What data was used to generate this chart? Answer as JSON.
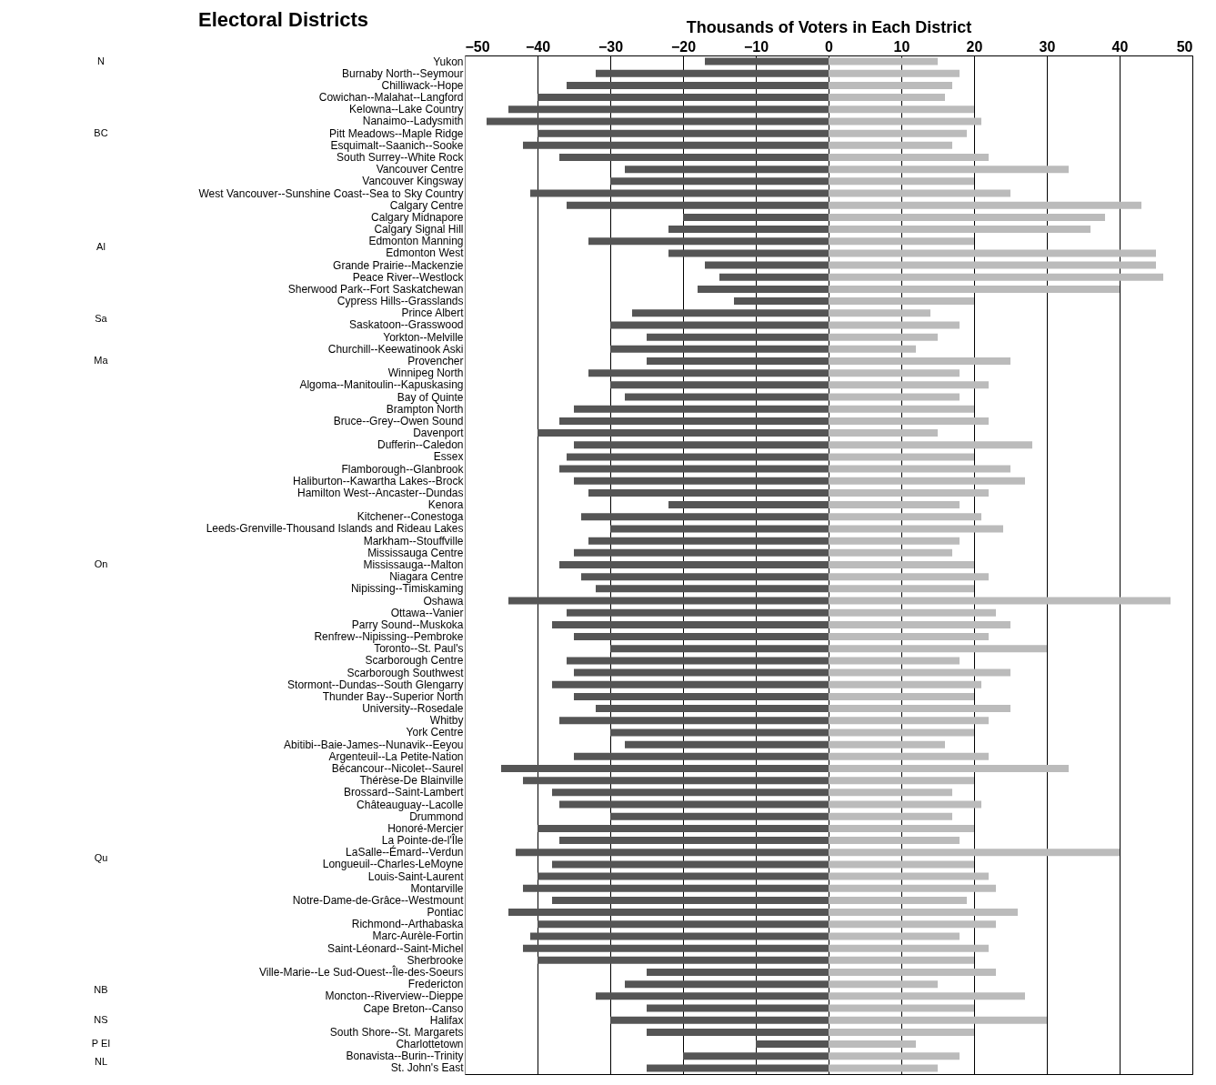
{
  "chart_data": {
    "type": "bar",
    "orientation": "horizontal",
    "stacked": true,
    "title": "Thousands of Voters in Each District",
    "ylabel": "Electoral Districts",
    "categories": [
      "Yukon",
      "Burnaby North--Seymour",
      "Chilliwack--Hope",
      "Cowichan--Malahat--Langford",
      "Kelowna--Lake Country",
      "Nanaimo--Ladysmith",
      "Pitt Meadows--Maple Ridge",
      "Esquimalt--Saanich--Sooke",
      "South Surrey--White Rock",
      "Vancouver Centre",
      "Vancouver Kingsway",
      "West Vancouver--Sunshine Coast--Sea to Sky Country",
      "Calgary Centre",
      "Calgary Midnapore",
      "Calgary Signal Hill",
      "Edmonton Manning",
      "Edmonton West",
      "Grande Prairie--Mackenzie",
      "Peace River--Westlock",
      "Sherwood Park--Fort Saskatchewan",
      "Cypress Hills--Grasslands",
      "Prince Albert",
      "Saskatoon--Grasswood",
      "Yorkton--Melville",
      "Churchill--Keewatinook Aski",
      "Provencher",
      "Winnipeg North",
      "Algoma--Manitoulin--Kapuskasing",
      "Bay of Quinte",
      "Brampton North",
      "Bruce--Grey--Owen Sound",
      "Davenport",
      "Dufferin--Caledon",
      "Essex",
      "Flamborough--Glanbrook",
      "Haliburton--Kawartha Lakes--Brock",
      "Hamilton West--Ancaster--Dundas",
      "Kenora",
      "Kitchener--Conestoga",
      "Leeds-Grenville-Thousand Islands and Rideau Lakes",
      "Markham--Stouffville",
      "Mississauga Centre",
      "Mississauga--Malton",
      "Niagara Centre",
      "Nipissing--Timiskaming",
      "Oshawa",
      "Ottawa--Vanier",
      "Parry Sound--Muskoka",
      "Renfrew--Nipissing--Pembroke",
      "Toronto--St. Paul's",
      "Scarborough Centre",
      "Scarborough Southwest",
      "Stormont--Dundas--South Glengarry",
      "Thunder Bay--Superior North",
      "University--Rosedale",
      "Whitby",
      "York Centre",
      "Abitibi--Baie-James--Nunavik--Eeyou",
      "Argenteuil--La Petite-Nation",
      "Bécancour--Nicolet--Saurel",
      "Thérèse-De Blainville",
      "Brossard--Saint-Lambert",
      "Châteauguay--Lacolle",
      "Drummond",
      "Honoré-Mercier",
      "La Pointe-de-l'Île",
      "LaSalle--Émard--Verdun",
      "Longueuil--Charles-LeMoyne",
      "Louis-Saint-Laurent",
      "Montarville",
      "Notre-Dame-de-Grâce--Westmount",
      "Pontiac",
      "Richmond--Arthabaska",
      "Marc-Aurèle-Fortin",
      "Saint-Léonard--Saint-Michel",
      "Sherbrooke",
      "Ville-Marie--Le Sud-Ouest--Île-des-Soeurs",
      "Fredericton",
      "Moncton--Riverview--Dieppe",
      "Cape Breton--Canso",
      "Halifax",
      "South Shore--St. Margarets",
      "Charlottetown",
      "Bonavista--Burin--Trinity",
      "St. John's East"
    ],
    "series": [
      {
        "color": "#555555",
        "values": [
          -17,
          -32,
          -36,
          -40,
          -44,
          -47,
          -40,
          -42,
          -37,
          -28,
          -30,
          -41,
          -36,
          -20,
          -22,
          -33,
          -22,
          -17,
          -15,
          -18,
          -13,
          -27,
          -30,
          -25,
          -30,
          -25,
          -33,
          -30,
          -28,
          -35,
          -37,
          -40,
          -35,
          -36,
          -37,
          -35,
          -33,
          -22,
          -34,
          -30,
          -33,
          -35,
          -37,
          -34,
          -32,
          -44,
          -36,
          -38,
          -35,
          -30,
          -36,
          -35,
          -38,
          -35,
          -32,
          -37,
          -30,
          -28,
          -35,
          -45,
          -42,
          -38,
          -37,
          -30,
          -40,
          -37,
          -43,
          -38,
          -40,
          -42,
          -38,
          -44,
          -40,
          -41,
          -42,
          -40,
          -25,
          -28,
          -32,
          -25,
          -30,
          -25,
          -10,
          -20,
          -25
        ]
      },
      {
        "color": "#bbbbbb",
        "values": [
          15,
          18,
          17,
          16,
          20,
          21,
          19,
          17,
          22,
          33,
          20,
          25,
          43,
          38,
          36,
          20,
          45,
          45,
          46,
          40,
          20,
          14,
          18,
          15,
          12,
          25,
          18,
          22,
          18,
          20,
          22,
          15,
          28,
          20,
          25,
          27,
          22,
          18,
          21,
          24,
          18,
          17,
          20,
          22,
          20,
          47,
          23,
          25,
          22,
          30,
          18,
          25,
          21,
          20,
          25,
          22,
          20,
          16,
          22,
          33,
          20,
          17,
          21,
          17,
          20,
          18,
          40,
          20,
          22,
          23,
          19,
          26,
          23,
          18,
          22,
          20,
          23,
          15,
          27,
          20,
          30,
          20,
          12,
          18,
          15
        ]
      }
    ],
    "annotations": [
      "N",
      "BC",
      "Al",
      "Sa",
      "Ma",
      "On",
      "Qu",
      "NB",
      "NS",
      "P EI",
      "NL"
    ],
    "xlim": [
      -50,
      50
    ],
    "xticks": [
      -50,
      -40,
      -30,
      -20,
      -10,
      0,
      10,
      20,
      30,
      40,
      50
    ],
    "grid": "x",
    "legend": false
  }
}
